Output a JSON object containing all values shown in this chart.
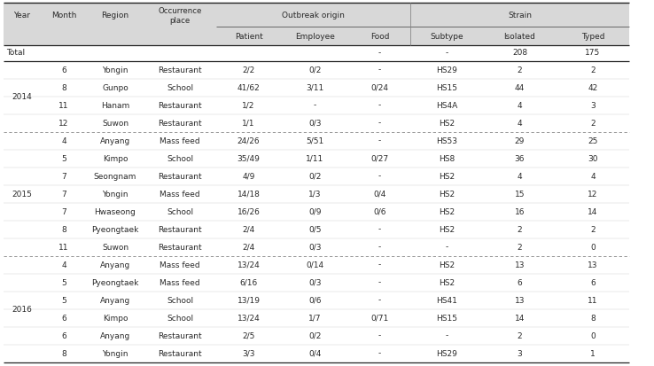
{
  "col_headers_top": [
    "Year",
    "Month",
    "Region",
    "Occurrence\nplace",
    "Outbreak origin",
    "Strain"
  ],
  "col_headers_sub": [
    "Patient",
    "Employee",
    "Food",
    "Subtype",
    "Isolated",
    "Typed"
  ],
  "total_row": [
    "Total",
    "",
    "",
    "",
    "",
    "",
    "-",
    "-",
    "208",
    "175"
  ],
  "data": [
    [
      "2014",
      "6",
      "Yongin",
      "Restaurant",
      "2/2",
      "0/2",
      "-",
      "HS29",
      "2",
      "2"
    ],
    [
      "",
      "8",
      "Gunpo",
      "School",
      "41/62",
      "3/11",
      "0/24",
      "HS15",
      "44",
      "42"
    ],
    [
      "",
      "11",
      "Hanam",
      "Restaurant",
      "1/2",
      "-",
      "-",
      "HS4A",
      "4",
      "3"
    ],
    [
      "",
      "12",
      "Suwon",
      "Restaurant",
      "1/1",
      "0/3",
      "-",
      "HS2",
      "4",
      "2"
    ],
    [
      "2015",
      "4",
      "Anyang",
      "Mass feed",
      "24/26",
      "5/51",
      "-",
      "HS53",
      "29",
      "25"
    ],
    [
      "",
      "5",
      "Kimpo",
      "School",
      "35/49",
      "1/11",
      "0/27",
      "HS8",
      "36",
      "30"
    ],
    [
      "",
      "7",
      "Seongnam",
      "Restaurant",
      "4/9",
      "0/2",
      "-",
      "HS2",
      "4",
      "4"
    ],
    [
      "",
      "7",
      "Yongin",
      "Mass feed",
      "14/18",
      "1/3",
      "0/4",
      "HS2",
      "15",
      "12"
    ],
    [
      "",
      "7",
      "Hwaseong",
      "School",
      "16/26",
      "0/9",
      "0/6",
      "HS2",
      "16",
      "14"
    ],
    [
      "",
      "8",
      "Pyeongtaek",
      "Restaurant",
      "2/4",
      "0/5",
      "-",
      "HS2",
      "2",
      "2"
    ],
    [
      "",
      "11",
      "Suwon",
      "Restaurant",
      "2/4",
      "0/3",
      "-",
      "-",
      "2",
      "0"
    ],
    [
      "2016",
      "4",
      "Anyang",
      "Mass feed",
      "13/24",
      "0/14",
      "-",
      "HS2",
      "13",
      "13"
    ],
    [
      "",
      "5",
      "Pyeongtaek",
      "Mass feed",
      "6/16",
      "0/3",
      "-",
      "HS2",
      "6",
      "6"
    ],
    [
      "",
      "5",
      "Anyang",
      "School",
      "13/19",
      "0/6",
      "-",
      "HS41",
      "13",
      "11"
    ],
    [
      "",
      "6",
      "Kimpo",
      "School",
      "13/24",
      "1/7",
      "0/71",
      "HS15",
      "14",
      "8"
    ],
    [
      "",
      "6",
      "Anyang",
      "Restaurant",
      "2/5",
      "0/2",
      "-",
      "-",
      "2",
      "0"
    ],
    [
      "",
      "8",
      "Yongin",
      "Restaurant",
      "3/3",
      "0/4",
      "-",
      "HS29",
      "3",
      "1"
    ]
  ],
  "year_spans": {
    "2014": [
      0,
      3
    ],
    "2015": [
      4,
      10
    ],
    "2016": [
      11,
      16
    ]
  },
  "text_color": "#2a2a2a",
  "header_bg": "#d8d8d8",
  "white_bg": "#ffffff",
  "border_color": "#555555",
  "dash_color": "#888888",
  "light_line": "#cccccc"
}
